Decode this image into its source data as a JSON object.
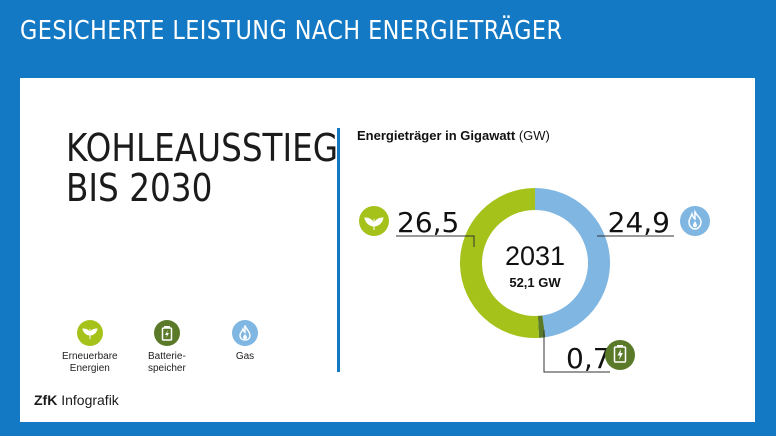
{
  "header": {
    "title": "GESICHERTE LEISTUNG NACH ENERGIETRÄGER"
  },
  "main": {
    "title_line1": "KOHLEAUSSTIEG",
    "title_line2": "BIS 2030"
  },
  "legend": [
    {
      "label": "Erneuerbare\nEnergien",
      "color": "#a4c21a",
      "icon": "leaf-icon"
    },
    {
      "label": "Batterie-\nspeicher",
      "color": "#5a7a2a",
      "icon": "battery-icon"
    },
    {
      "label": "Gas",
      "color": "#7fb6e2",
      "icon": "flame-icon"
    }
  ],
  "brand": {
    "logo": "ZfK",
    "text": "Infografik"
  },
  "chart_data": {
    "type": "pie",
    "variant": "donut",
    "title": "Energieträger in Gigawatt",
    "title_unit": "(GW)",
    "center_year": "2031",
    "center_total": "52,1 GW",
    "slices": [
      {
        "name": "Gas",
        "value": 24.9,
        "label": "24,9",
        "color": "#7fb6e2",
        "icon": "flame-icon"
      },
      {
        "name": "Batteriespeicher",
        "value": 0.7,
        "label": "0,7",
        "color": "#5a7a2a",
        "icon": "battery-icon"
      },
      {
        "name": "Erneuerbare Energien",
        "value": 26.5,
        "label": "26,5",
        "color": "#a4c21a",
        "icon": "leaf-icon"
      }
    ]
  }
}
